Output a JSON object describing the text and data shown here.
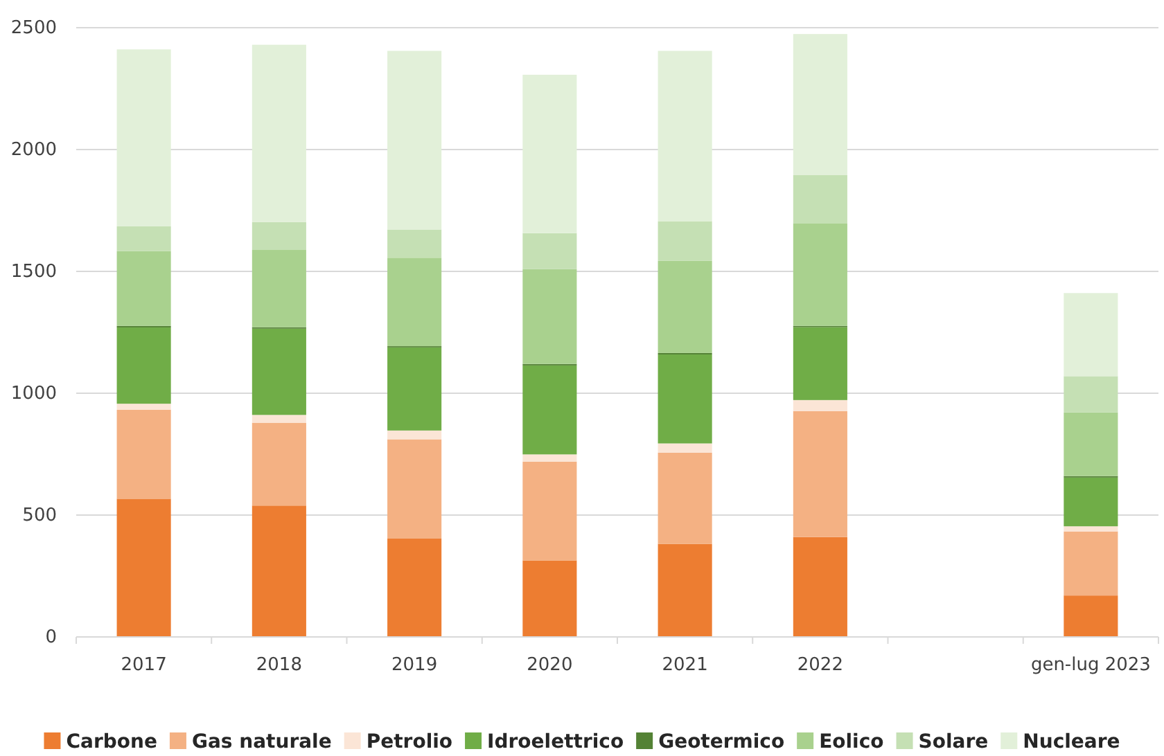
{
  "chart_data": {
    "type": "bar",
    "stacked": true,
    "categories": [
      "2017",
      "2018",
      "2019",
      "2020",
      "2021",
      "2022",
      null,
      "gen-lug 2023"
    ],
    "series": [
      {
        "name": "Carbone",
        "color": "#ed7d31",
        "values": [
          567,
          539,
          405,
          314,
          382,
          410,
          null,
          170
        ]
      },
      {
        "name": "Gas naturale",
        "color": "#f4b183",
        "values": [
          365,
          340,
          406,
          405,
          374,
          517,
          null,
          263
        ]
      },
      {
        "name": "Petrolio",
        "color": "#fbe5d6",
        "values": [
          25,
          32,
          36,
          30,
          38,
          45,
          null,
          21
        ]
      },
      {
        "name": "Idroelettrico",
        "color": "#70ad47",
        "values": [
          313,
          354,
          341,
          365,
          365,
          299,
          null,
          200
        ]
      },
      {
        "name": "Geotermico",
        "color": "#548235",
        "values": [
          6,
          6,
          5,
          6,
          6,
          5,
          null,
          6
        ]
      },
      {
        "name": "Eolico",
        "color": "#a9d18e",
        "values": [
          307,
          317,
          363,
          389,
          378,
          420,
          null,
          261
        ]
      },
      {
        "name": "Solare",
        "color": "#c5e0b4",
        "values": [
          102,
          114,
          116,
          148,
          163,
          199,
          null,
          149
        ]
      },
      {
        "name": "Nucleare",
        "color": "#e2f0d9",
        "values": [
          726,
          728,
          733,
          650,
          699,
          579,
          null,
          341
        ]
      }
    ],
    "ylim": [
      0,
      2500
    ],
    "yticks": [
      0,
      500,
      1000,
      1500,
      2000,
      2500
    ],
    "grid": "y",
    "legend": "bottom"
  }
}
